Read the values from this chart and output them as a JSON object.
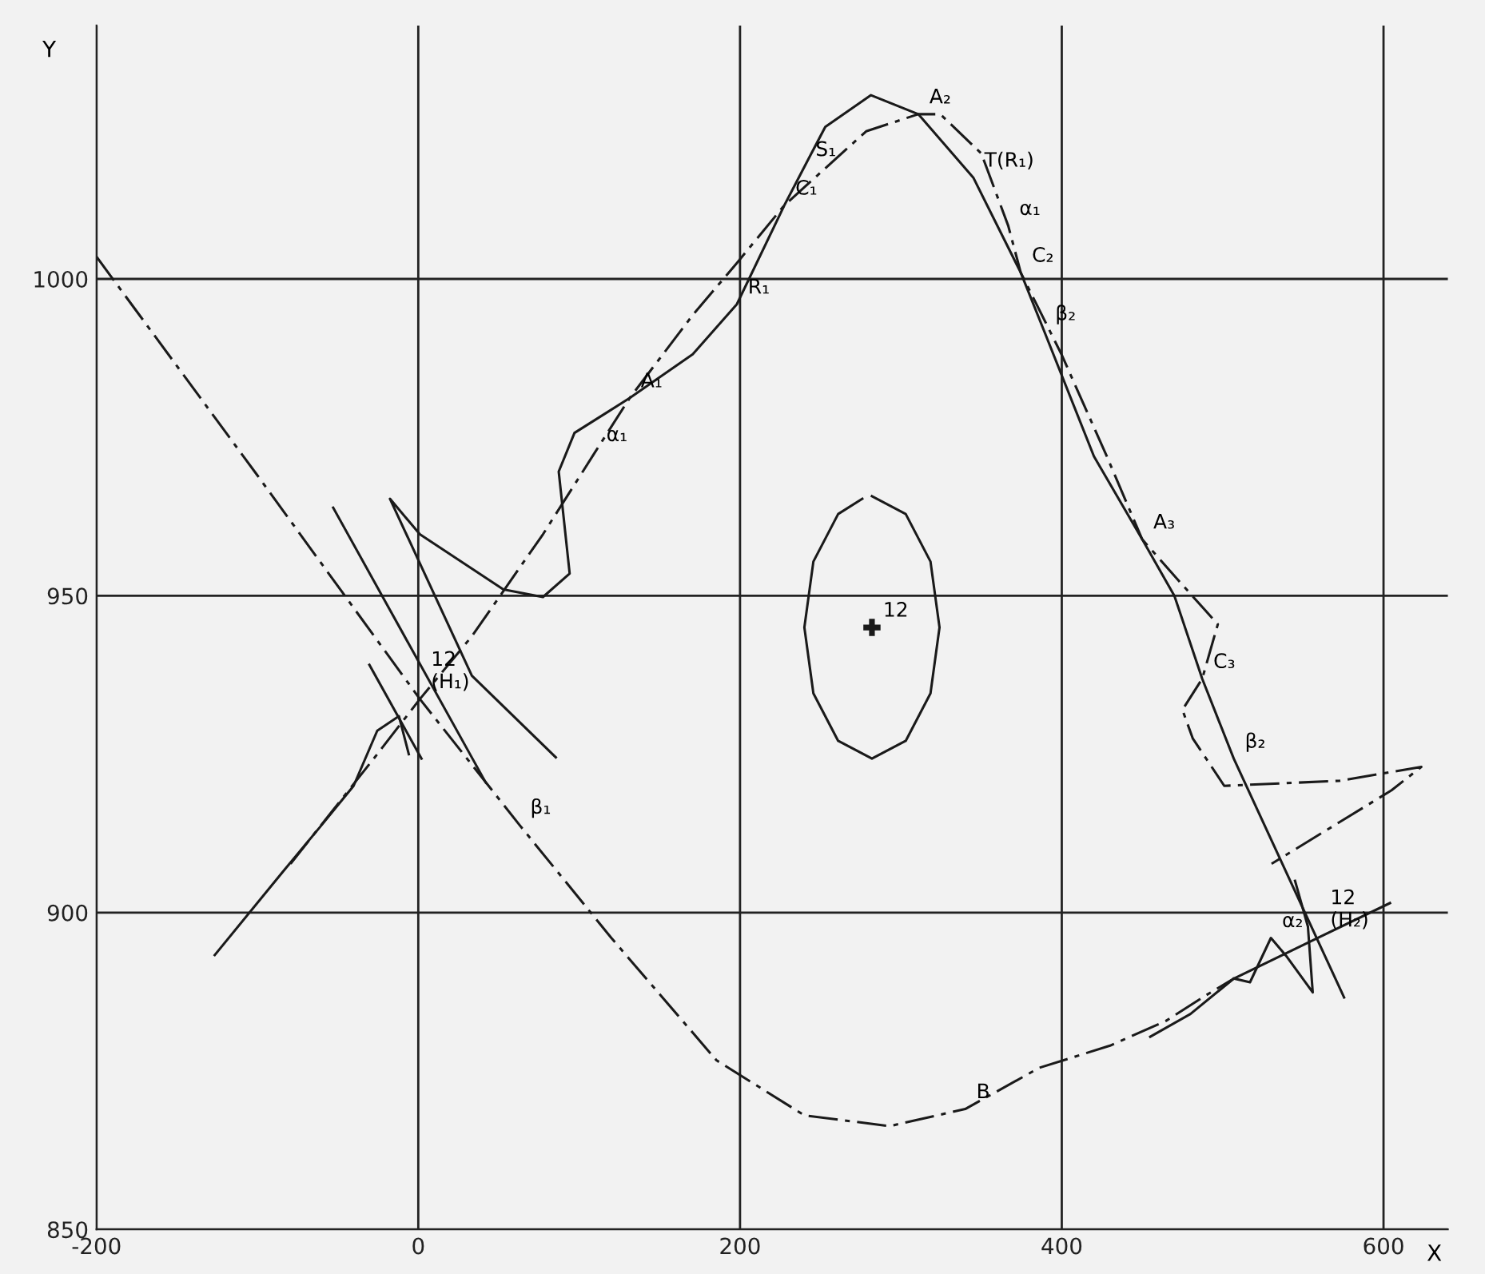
{
  "chart_data": {
    "type": "line",
    "xlabel": "X",
    "ylabel": "Y",
    "xlim": [
      -200,
      640
    ],
    "ylim": [
      850,
      1040
    ],
    "xticks": [
      -200,
      0,
      200,
      400,
      600
    ],
    "yticks": [
      850,
      900,
      950,
      1000
    ],
    "grid": true,
    "marker": "none",
    "series": [
      {
        "color": "#1a1a1a",
        "line_style": "dashed",
        "x": [
          -79.4,
          -25.5,
          1,
          33.3,
          77.5,
          110,
          131.4,
          170.6,
          198,
          227.5,
          278.4,
          310.8,
          324.5,
          350,
          366.7,
          374.5,
          400,
          428,
          450,
          474,
          497,
          487.3,
          475,
          481.4,
          501,
          572.5,
          623.5,
          605,
          530.4
        ],
        "values": [
          907.7,
          925,
          933.7,
          943.6,
          959.7,
          972.7,
          981.2,
          994.3,
          1002.5,
          1011.6,
          1023.3,
          1026,
          1026,
          1019.8,
          1008.4,
          1001,
          988,
          972,
          958.9,
          952,
          945.5,
          936.9,
          932,
          927.5,
          920,
          920.8,
          923,
          919.3,
          907.7
        ]
      },
      {
        "color": "#1a1a1a",
        "line_style": "solid",
        "x": [
          -126.5,
          -84.3,
          -59.8,
          -40.2,
          -25.5,
          -12,
          -5.9
        ],
        "values": [
          893.3,
          906.4,
          913.9,
          920,
          928.7,
          931,
          925
        ]
      },
      {
        "color": "#1a1a1a",
        "line_style": "solid",
        "x": [
          85.5,
          33.3,
          -17.6,
          1,
          52.9,
          77.5,
          94.1,
          87.3,
          97.1,
          131.4,
          170.6,
          198,
          227.5,
          240,
          253,
          281.4,
          310.8,
          345,
          374.5,
          389,
          420,
          450,
          470,
          487.3,
          506.9,
          575.5
        ],
        "values": [
          924.5,
          937.4,
          965.3,
          959.7,
          951,
          949.8,
          953.5,
          969.6,
          975.7,
          981.2,
          988.1,
          996,
          1011.6,
          1017.7,
          1024,
          1029,
          1026,
          1016,
          1001,
          991.8,
          972,
          958.9,
          950,
          936.9,
          924.3,
          886.6
        ]
      },
      {
        "color": "#1a1a1a",
        "line_style": "dashed",
        "x": [
          -200,
          -100,
          1,
          62.7,
          120,
          185.3,
          240,
          293,
          340,
          386,
          430,
          464.7,
          490,
          507
        ],
        "values": [
          1003.5,
          969,
          933.7,
          913.9,
          896,
          876.7,
          868,
          866.3,
          869,
          875.5,
          879,
          882.9,
          887,
          889.6
        ]
      },
      {
        "color": "#1a1a1a",
        "line_style": "solid",
        "x": [
          455,
          480,
          507,
          560,
          604
        ],
        "values": [
          880.4,
          884,
          889.6,
          896.1,
          901.5
        ]
      },
      {
        "color": "#1a1a1a",
        "line_style": "solid",
        "x": [
          507,
          517,
          530,
          540,
          556,
          553,
          545
        ],
        "values": [
          889.6,
          889,
          896,
          893,
          887.4,
          897.8,
          905
        ]
      },
      {
        "color": "#1a1a1a",
        "line_style": "solid",
        "x": [
          -52.9,
          42
        ],
        "values": [
          963.9,
          920.5
        ]
      },
      {
        "color": "#1a1a1a",
        "line_style": "solid",
        "x": [
          -30.4,
          2
        ],
        "values": [
          939.1,
          924.3
        ]
      },
      {
        "color": "#1a1a1a",
        "line_style": "solid",
        "x": [
          282,
          303,
          318.4,
          324,
          318.4,
          303,
          282,
          261,
          245.6,
          240,
          245.6,
          261,
          276
        ],
        "values": [
          965.7,
          962.9,
          955.4,
          945,
          934.6,
          927.1,
          924.3,
          927.1,
          934.6,
          945,
          955.4,
          962.9,
          965.3
        ]
      },
      {
        "type": "scatter",
        "marker": "cross",
        "color": "#1a1a1a",
        "x": [
          282
        ],
        "values": [
          945
        ]
      }
    ],
    "annotations": [
      {
        "text": "S₁",
        "x": 240,
        "y": 1017.7
      },
      {
        "text": "A₂",
        "x": 310.8,
        "y": 1026
      },
      {
        "text": "T(R₁)",
        "x": 345,
        "y": 1016
      },
      {
        "text": "α₁",
        "x": 366.7,
        "y": 1008.4
      },
      {
        "text": "β₂",
        "x": 389,
        "y": 991.8
      },
      {
        "text": "C₁",
        "x": 227.5,
        "y": 1011.6
      },
      {
        "text": "C₂",
        "x": 374.5,
        "y": 1001
      },
      {
        "text": "R₁",
        "x": 198,
        "y": 996
      },
      {
        "text": "α₁",
        "x": 110,
        "y": 972.7
      },
      {
        "text": "A₁",
        "x": 131.4,
        "y": 981.2
      },
      {
        "text": "12",
        "x": 282,
        "y": 945
      },
      {
        "text": "12\n(H₁)",
        "x": 1,
        "y": 933.7
      },
      {
        "text": "β₁",
        "x": 62.7,
        "y": 913.9
      },
      {
        "text": "A₃",
        "x": 450,
        "y": 958.9
      },
      {
        "text": "C₃",
        "x": 487.3,
        "y": 936.9
      },
      {
        "text": "β₂",
        "x": 506.9,
        "y": 924.3
      },
      {
        "text": "α₂",
        "x": 530,
        "y": 896
      },
      {
        "text": "12\n(H₂)",
        "x": 560,
        "y": 896.1
      },
      {
        "text": "B",
        "x": 340,
        "y": 869
      }
    ]
  }
}
